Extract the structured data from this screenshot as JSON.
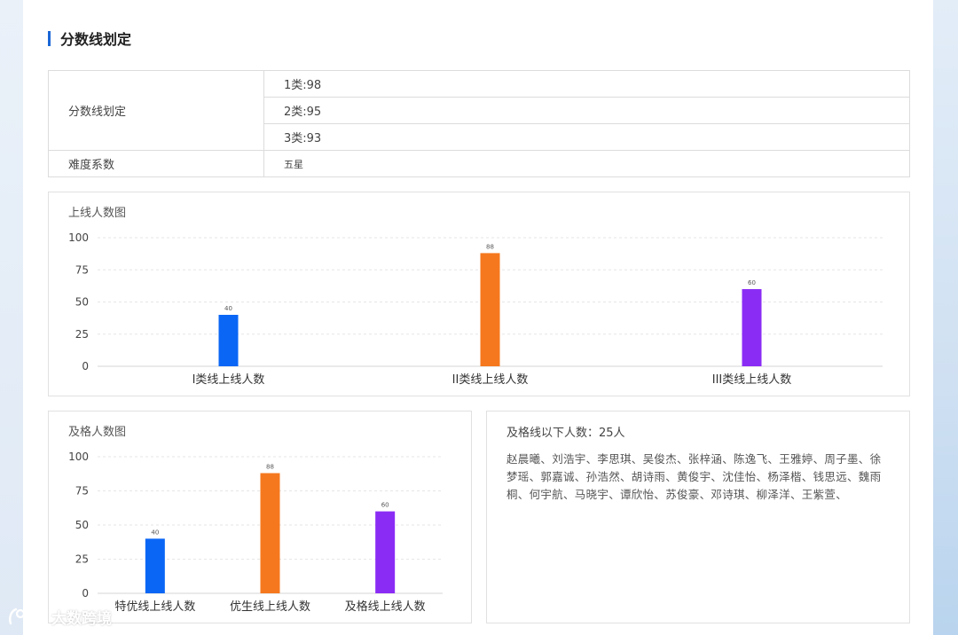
{
  "section": {
    "title": "分数线划定"
  },
  "info_table": {
    "row_label": "分数线划定",
    "lines": [
      "1类:98",
      "2类:95",
      "3类:93"
    ],
    "difficulty_label": "难度系数",
    "difficulty_value": "五星"
  },
  "online_chart": {
    "title": "上线人数图"
  },
  "pass_chart": {
    "title": "及格人数图"
  },
  "below_pass": {
    "summary": "及格线以下人数：25人",
    "names": "赵晨曦、刘浩宇、李思琪、吴俊杰、张梓涵、陈逸飞、王雅婷、周子墨、徐梦瑶、郭嘉诚、孙浩然、胡诗雨、黄俊宇、沈佳怡、杨泽楷、钱思远、魏雨桐、何宇航、马晓宇、谭欣怡、苏俊豪、邓诗琪、柳泽洋、王紫萱、"
  },
  "watermark": {
    "text": "大数跨境"
  },
  "chart_data": [
    {
      "type": "bar",
      "title": "上线人数图",
      "categories": [
        "I类线上线人数",
        "II类线上线人数",
        "III类线上线人数"
      ],
      "values": [
        40,
        88,
        60
      ],
      "colors": [
        "#0a66f5",
        "#f5781e",
        "#8b2cf5"
      ],
      "ylim": [
        0,
        100
      ],
      "yticks": [
        0,
        25,
        50,
        75,
        100
      ],
      "grid": true
    },
    {
      "type": "bar",
      "title": "及格人数图",
      "categories": [
        "特优线上线人数",
        "优生线上线人数",
        "及格线上线人数"
      ],
      "values": [
        40,
        88,
        60
      ],
      "colors": [
        "#0a66f5",
        "#f5781e",
        "#8b2cf5"
      ],
      "ylim": [
        0,
        100
      ],
      "yticks": [
        0,
        25,
        50,
        75,
        100
      ],
      "grid": true
    }
  ]
}
